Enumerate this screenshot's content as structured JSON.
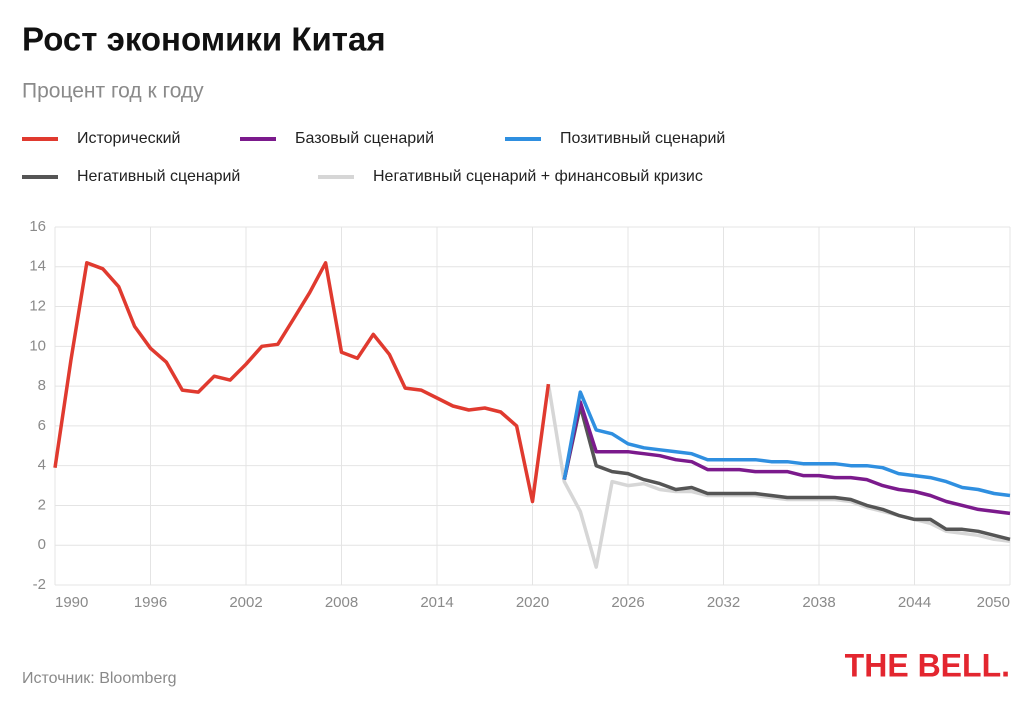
{
  "chart_data": {
    "type": "line",
    "title": "Рост экономики Китая",
    "subtitle": "Процент год к году",
    "source": "Источник: Bloomberg",
    "logo": "THE BELL.",
    "x": [
      1990,
      1991,
      1992,
      1993,
      1994,
      1995,
      1996,
      1997,
      1998,
      1999,
      2000,
      2001,
      2002,
      2003,
      2004,
      2005,
      2006,
      2007,
      2008,
      2009,
      2010,
      2011,
      2012,
      2013,
      2014,
      2015,
      2016,
      2017,
      2018,
      2019,
      2020,
      2021,
      2022,
      2023,
      2024,
      2025,
      2026,
      2027,
      2028,
      2029,
      2030,
      2031,
      2032,
      2033,
      2034,
      2035,
      2036,
      2037,
      2038,
      2039,
      2040,
      2041,
      2042,
      2043,
      2044,
      2045,
      2046,
      2047,
      2048,
      2049,
      2050
    ],
    "series": [
      {
        "name": "Негативный сценарий + финансовый кризис",
        "color": "#d6d6d6",
        "values": [
          null,
          null,
          null,
          null,
          null,
          null,
          null,
          null,
          null,
          null,
          null,
          null,
          null,
          null,
          null,
          null,
          null,
          null,
          null,
          null,
          null,
          null,
          null,
          null,
          null,
          null,
          null,
          null,
          null,
          null,
          null,
          8.1,
          3.2,
          1.7,
          -1.1,
          3.2,
          3.0,
          3.1,
          2.8,
          2.7,
          2.7,
          2.5,
          2.5,
          2.5,
          2.5,
          2.4,
          2.3,
          2.3,
          2.3,
          2.3,
          2.2,
          1.9,
          1.7,
          1.5,
          1.3,
          1.1,
          0.7,
          0.6,
          0.5,
          0.3,
          0.2
        ]
      },
      {
        "name": "Негативный сценарий",
        "color": "#555555",
        "values": [
          null,
          null,
          null,
          null,
          null,
          null,
          null,
          null,
          null,
          null,
          null,
          null,
          null,
          null,
          null,
          null,
          null,
          null,
          null,
          null,
          null,
          null,
          null,
          null,
          null,
          null,
          null,
          null,
          null,
          null,
          null,
          null,
          3.3,
          7.0,
          4.0,
          3.7,
          3.6,
          3.3,
          3.1,
          2.8,
          2.9,
          2.6,
          2.6,
          2.6,
          2.6,
          2.5,
          2.4,
          2.4,
          2.4,
          2.4,
          2.3,
          2.0,
          1.8,
          1.5,
          1.3,
          1.3,
          0.8,
          0.8,
          0.7,
          0.5,
          0.3
        ]
      },
      {
        "name": "Базовый сценарий",
        "color": "#7b1a8c",
        "values": [
          null,
          null,
          null,
          null,
          null,
          null,
          null,
          null,
          null,
          null,
          null,
          null,
          null,
          null,
          null,
          null,
          null,
          null,
          null,
          null,
          null,
          null,
          null,
          null,
          null,
          null,
          null,
          null,
          null,
          null,
          null,
          null,
          3.3,
          7.2,
          4.7,
          4.7,
          4.7,
          4.6,
          4.5,
          4.3,
          4.2,
          3.8,
          3.8,
          3.8,
          3.7,
          3.7,
          3.7,
          3.5,
          3.5,
          3.4,
          3.4,
          3.3,
          3.0,
          2.8,
          2.7,
          2.5,
          2.2,
          2.0,
          1.8,
          1.7,
          1.6
        ]
      },
      {
        "name": "Позитивный сценарий",
        "color": "#2f8fe0",
        "values": [
          null,
          null,
          null,
          null,
          null,
          null,
          null,
          null,
          null,
          null,
          null,
          null,
          null,
          null,
          null,
          null,
          null,
          null,
          null,
          null,
          null,
          null,
          null,
          null,
          null,
          null,
          null,
          null,
          null,
          null,
          null,
          null,
          3.3,
          7.7,
          5.8,
          5.6,
          5.1,
          4.9,
          4.8,
          4.7,
          4.6,
          4.3,
          4.3,
          4.3,
          4.3,
          4.2,
          4.2,
          4.1,
          4.1,
          4.1,
          4.0,
          4.0,
          3.9,
          3.6,
          3.5,
          3.4,
          3.2,
          2.9,
          2.8,
          2.6,
          2.5
        ]
      },
      {
        "name": "Исторический",
        "color": "#e03a2f",
        "values": [
          3.9,
          9.3,
          14.2,
          13.9,
          13.0,
          11.0,
          9.9,
          9.2,
          7.8,
          7.7,
          8.5,
          8.3,
          9.1,
          10.0,
          10.1,
          11.4,
          12.7,
          14.2,
          9.7,
          9.4,
          10.6,
          9.6,
          7.9,
          7.8,
          7.4,
          7.0,
          6.8,
          6.9,
          6.7,
          6.0,
          2.2,
          8.1,
          null,
          null,
          null,
          null,
          null,
          null,
          null,
          null,
          null,
          null,
          null,
          null,
          null,
          null,
          null,
          null,
          null,
          null,
          null,
          null,
          null,
          null,
          null,
          null,
          null,
          null,
          null,
          null,
          null
        ]
      }
    ],
    "legend_order": [
      4,
      2,
      3,
      1,
      0
    ],
    "xlim": [
      1990,
      2050
    ],
    "xticks": [
      1990,
      1996,
      2002,
      2008,
      2014,
      2020,
      2026,
      2032,
      2038,
      2044,
      2050
    ],
    "ylim": [
      -2,
      16
    ],
    "yticks": [
      -2,
      0,
      2,
      4,
      6,
      8,
      10,
      12,
      14,
      16
    ],
    "grid": true
  }
}
